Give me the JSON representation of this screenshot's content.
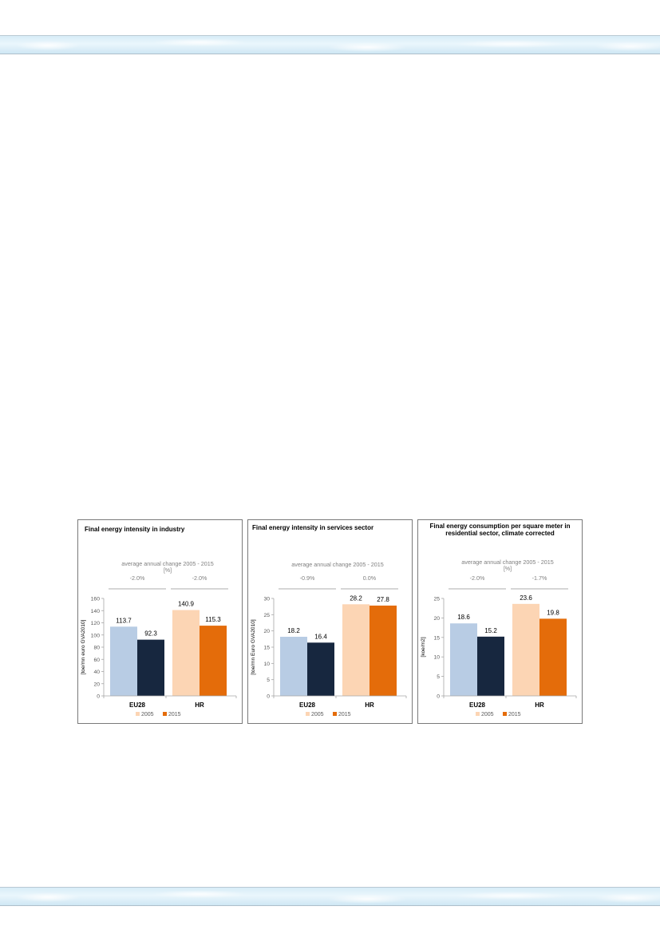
{
  "chart_data": [
    {
      "type": "bar",
      "title": "Final energy intensity in industry",
      "subtitle": "average annual change 2005 - 2015",
      "subtitle_unit": "[%]",
      "ylabel": "[toe/mn euro GVA2010]",
      "ylim": [
        0,
        160
      ],
      "yticks": [
        0,
        20,
        40,
        60,
        80,
        100,
        120,
        140,
        160
      ],
      "categories": [
        "EU28",
        "HR"
      ],
      "changes": [
        "-2.0%",
        "-2.0%"
      ],
      "series": [
        {
          "name": "2005",
          "values": [
            113.7,
            140.9
          ],
          "labels": [
            "113.7",
            "140.9"
          ]
        },
        {
          "name": "2015",
          "values": [
            92.3,
            115.3
          ],
          "labels": [
            "92.3",
            "115.3"
          ]
        }
      ],
      "legend": "bottom"
    },
    {
      "type": "bar",
      "title": "Final energy intensity in services sector",
      "subtitle": "average annual change 2005 - 2015",
      "ylabel": "[toe/mn Euro GVA2010]",
      "ylim": [
        0,
        30
      ],
      "yticks": [
        0,
        5,
        10,
        15,
        20,
        25,
        30
      ],
      "categories": [
        "EU28",
        "HR"
      ],
      "changes": [
        "-0.9%",
        "0.0%"
      ],
      "series": [
        {
          "name": "2005",
          "values": [
            18.2,
            28.2
          ],
          "labels": [
            "18.2",
            "28.2"
          ]
        },
        {
          "name": "2015",
          "values": [
            16.4,
            27.8
          ],
          "labels": [
            "16.4",
            "27.8"
          ]
        }
      ],
      "legend": "bottom"
    },
    {
      "type": "bar",
      "title": "Final energy consumption per square meter in residential sector, climate corrected",
      "subtitle": "average annual change 2005 - 2015",
      "subtitle_unit": "[%]",
      "ylabel": "[koe/m2]",
      "ylim": [
        0,
        25
      ],
      "yticks": [
        0,
        5,
        10,
        15,
        20,
        25
      ],
      "categories": [
        "EU28",
        "HR"
      ],
      "changes": [
        "-2.0%",
        "-1.7%"
      ],
      "series": [
        {
          "name": "2005",
          "values": [
            18.6,
            23.6
          ],
          "labels": [
            "18.6",
            "23.6"
          ]
        },
        {
          "name": "2015",
          "values": [
            15.2,
            19.8
          ],
          "labels": [
            "15.2",
            "19.8"
          ]
        }
      ],
      "legend": "bottom"
    }
  ],
  "colors": {
    "eu_2005": "#b8cce4",
    "eu_2015": "#17273f",
    "hr_2005": "#fcd5b4",
    "hr_2015": "#e46c0a",
    "text": "#000000",
    "muted": "#7f7f7f",
    "axis": "#a6a6a6"
  }
}
